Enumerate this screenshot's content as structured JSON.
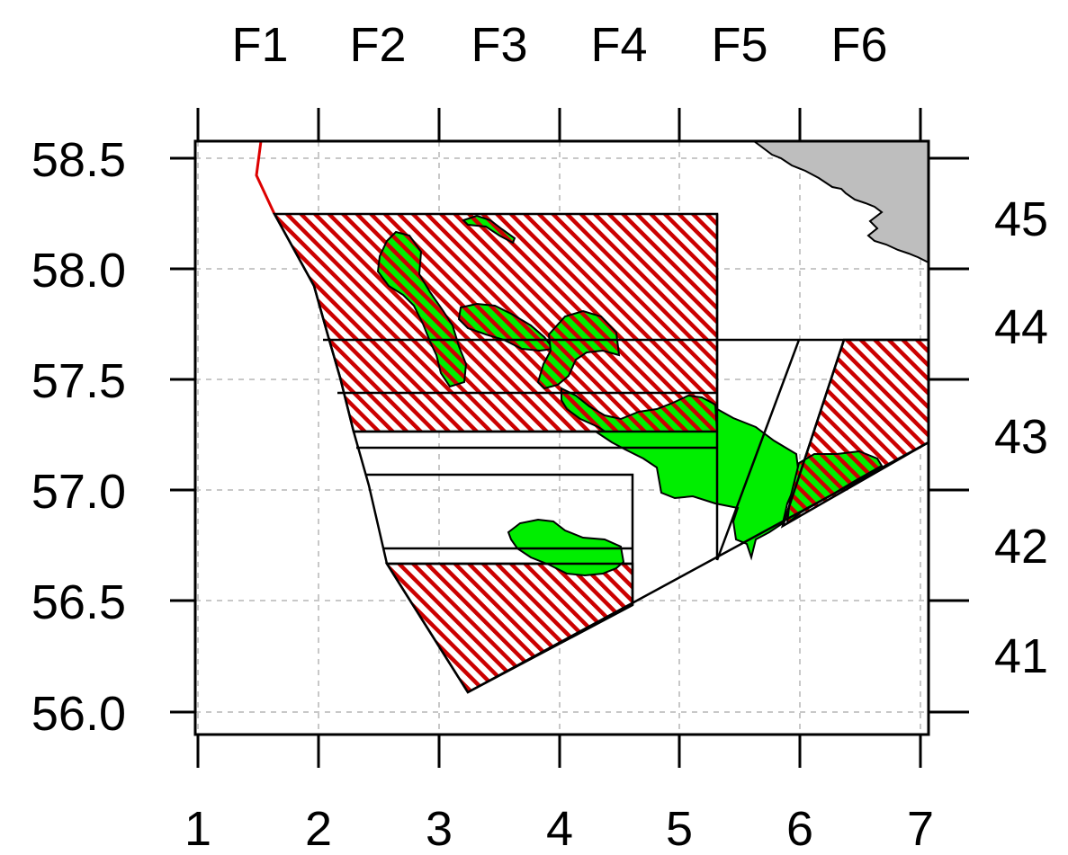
{
  "chart_data": {
    "type": "map",
    "x_ticks": [
      "1",
      "2",
      "3",
      "4",
      "5",
      "6",
      "7"
    ],
    "y_ticks_left": [
      "58.5",
      "58.0",
      "57.5",
      "57.0",
      "56.5",
      "56.0"
    ],
    "top_labels": [
      "F1",
      "F2",
      "F3",
      "F4",
      "F5",
      "F6"
    ],
    "right_labels": [
      "45",
      "44",
      "43",
      "42",
      "41"
    ],
    "xlim": [
      1,
      7
    ],
    "ylim": [
      56.0,
      58.5
    ],
    "grid": "dashed",
    "colors": {
      "closed_area_hatch": "#cc0000",
      "habitat_fill": "#00ee00",
      "land_fill": "#bebebe",
      "boundary_line": "#dd0000"
    }
  }
}
